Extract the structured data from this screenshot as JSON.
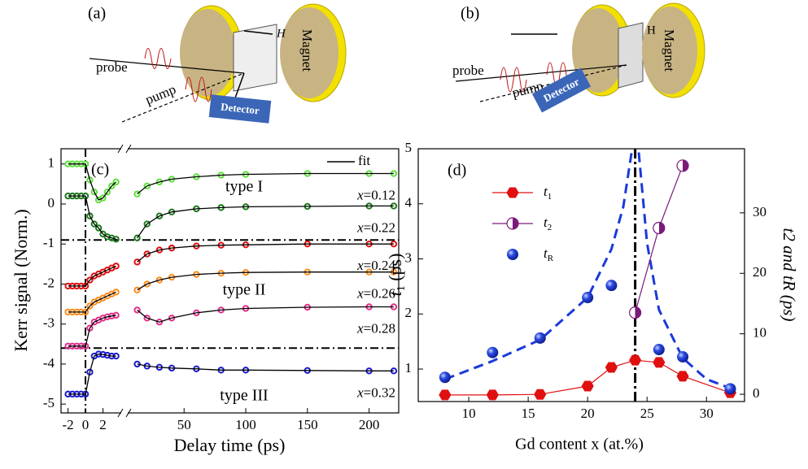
{
  "diagrams": {
    "a": {
      "label": "(a)",
      "probe": "probe",
      "pump": "pump",
      "field": "H",
      "magnet": "Magnet",
      "detector": "Detector"
    },
    "b": {
      "label": "(b)",
      "probe": "probe",
      "pump": "pump",
      "field": "H",
      "magnet": "Magnet",
      "detector": "Detector"
    }
  },
  "chart_data": [
    {
      "type": "line",
      "panel": "(c)",
      "x_label": "Delay time (ps)",
      "y_label": "Kerr signal (Norm.)",
      "legend_label": "fit",
      "annotations": [
        "type I",
        "type II",
        "type III"
      ],
      "x": [
        -2,
        -1.5,
        -1,
        -0.5,
        0,
        0.5,
        1,
        1.5,
        2,
        2.5,
        3,
        3.5,
        12,
        20,
        30,
        40,
        60,
        80,
        100,
        150,
        200,
        220
      ],
      "xlim": [
        -2.8,
        4
      ],
      "x2lim": [
        5,
        224
      ],
      "ylim": [
        -5.22,
        1.38
      ],
      "xticks": [
        -2,
        0,
        2
      ],
      "x2ticks": [
        50,
        100,
        150,
        200
      ],
      "yticks": [
        1,
        0,
        -1,
        -2,
        -3,
        -4,
        -5
      ],
      "hlines": [
        -0.9,
        -3.6
      ],
      "vline": 0,
      "series": [
        {
          "name": "x=0.12",
          "color": "#5ee03c",
          "values": [
            1.0,
            1.0,
            1.0,
            1.0,
            1.0,
            0.6,
            0.3,
            0.1,
            0.15,
            0.3,
            0.45,
            0.55,
            0.25,
            0.45,
            0.55,
            0.62,
            0.68,
            0.72,
            0.74,
            0.76,
            0.76,
            0.76
          ]
        },
        {
          "name": "x=0.22",
          "color": "#1e7a1e",
          "values": [
            0.2,
            0.2,
            0.2,
            0.2,
            0.2,
            -0.3,
            -0.5,
            -0.6,
            -0.75,
            -0.82,
            -0.85,
            -0.88,
            -0.85,
            -0.5,
            -0.3,
            -0.2,
            -0.12,
            -0.09,
            -0.07,
            -0.06,
            -0.05,
            -0.05
          ]
        },
        {
          "name": "x=0.24",
          "color": "#e01010",
          "values": [
            -2.05,
            -2.05,
            -2.05,
            -2.05,
            -2.05,
            -1.9,
            -1.8,
            -1.75,
            -1.7,
            -1.65,
            -1.6,
            -1.55,
            -1.45,
            -1.25,
            -1.15,
            -1.1,
            -1.05,
            -1.03,
            -1.02,
            -1.0,
            -1.0,
            -1.0
          ]
        },
        {
          "name": "x=0.26",
          "color": "#ff8c1a",
          "values": [
            -2.7,
            -2.7,
            -2.7,
            -2.7,
            -2.7,
            -2.55,
            -2.45,
            -2.4,
            -2.35,
            -2.3,
            -2.25,
            -2.2,
            -2.15,
            -2.0,
            -1.9,
            -1.83,
            -1.76,
            -1.73,
            -1.71,
            -1.7,
            -1.7,
            -1.7
          ]
        },
        {
          "name": "x=0.28",
          "color": "#e0308a",
          "values": [
            -3.55,
            -3.55,
            -3.55,
            -3.55,
            -3.55,
            -3.1,
            -2.95,
            -2.9,
            -2.85,
            -2.82,
            -2.8,
            -2.78,
            -2.65,
            -2.85,
            -2.95,
            -2.85,
            -2.72,
            -2.65,
            -2.61,
            -2.58,
            -2.57,
            -2.57
          ]
        },
        {
          "name": "x=0.32",
          "color": "#1a1ad0",
          "values": [
            -4.75,
            -4.75,
            -4.75,
            -4.75,
            -4.75,
            -4.2,
            -3.8,
            -3.75,
            -3.76,
            -3.78,
            -3.8,
            -3.8,
            -4.0,
            -4.05,
            -4.08,
            -4.1,
            -4.12,
            -4.15,
            -4.15,
            -4.16,
            -4.17,
            -4.17
          ]
        }
      ]
    },
    {
      "type": "scatter",
      "panel": "(d)",
      "x_label": "Gd content x (at.%)",
      "y_label": "t1 (ps)",
      "y2_label": "t2 and tR (ps)",
      "xlim": [
        5.75,
        33.2
      ],
      "ylim": [
        0.41,
        5
      ],
      "y2lim": [
        -1.2,
        40.6
      ],
      "xticks": [
        10,
        15,
        20,
        25,
        30
      ],
      "yticks": [
        1,
        2,
        3,
        4,
        5
      ],
      "y2ticks": [
        0,
        10,
        20,
        30
      ],
      "vline": 24,
      "series": [
        {
          "name": "t1",
          "color": "#e01010",
          "x": [
            8,
            12,
            16,
            20,
            22,
            24,
            26,
            28,
            32
          ],
          "values": [
            0.53,
            0.53,
            0.54,
            0.69,
            1.03,
            1.16,
            1.12,
            0.87,
            0.57
          ]
        },
        {
          "name": "t2",
          "color": "#7a1a7a",
          "axis": "y2",
          "x": [
            24,
            26,
            28
          ],
          "values": [
            13.5,
            27.5,
            37.8
          ]
        },
        {
          "name": "tR",
          "color": "#1a3ad8",
          "axis": "y2",
          "x": [
            8,
            12,
            16,
            20,
            22,
            26,
            28,
            32
          ],
          "values": [
            2.8,
            6.9,
            9.3,
            16.0,
            18.0,
            7.4,
            6.2,
            0.9
          ]
        }
      ],
      "fit": {
        "color": "#1a3ad8",
        "axis": "y2",
        "x": [
          8,
          12,
          16,
          20,
          22,
          23,
          23.7,
          null,
          24.3,
          25,
          26,
          28,
          30,
          32
        ],
        "values": [
          2.5,
          5.5,
          9,
          16,
          24,
          31,
          40,
          null,
          40,
          25,
          14,
          6,
          2.5,
          1
        ]
      }
    }
  ]
}
